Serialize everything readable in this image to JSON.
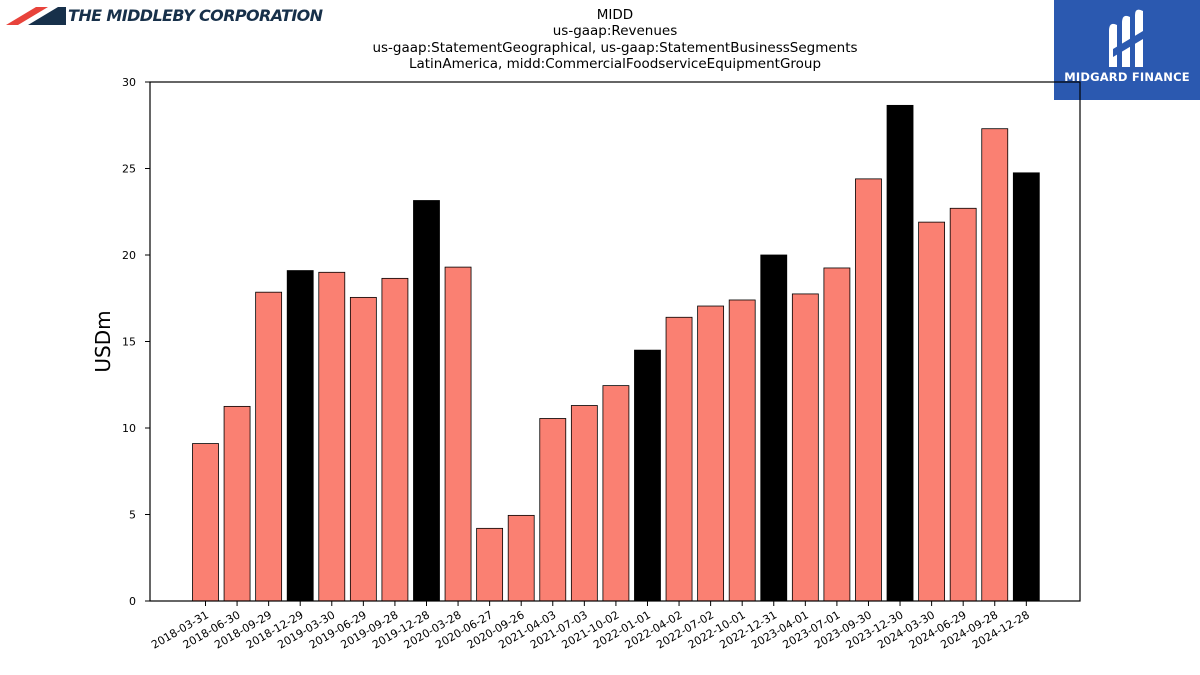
{
  "header": {
    "company_name": "THE MIDDLEBY CORPORATION",
    "company_logo_icon": "middleby-chevron-icon",
    "brand_icon": "midgard-m-icon",
    "brand_name": "MIDGARD FINANCE",
    "brand_color": "#2b59b0"
  },
  "chart_data": {
    "type": "bar",
    "title_lines": [
      "MIDD",
      "us-gaap:Revenues",
      "us-gaap:StatementGeographical, us-gaap:StatementBusinessSegments",
      "LatinAmerica, midd:CommercialFoodserviceEquipmentGroup"
    ],
    "ylabel": "USDm",
    "xlabel": "",
    "ylim": [
      0,
      30
    ],
    "yticks": [
      0,
      5,
      10,
      15,
      20,
      25,
      30
    ],
    "grid": false,
    "categories": [
      "2018-03-31",
      "2018-06-30",
      "2018-09-29",
      "2018-12-29",
      "2019-03-30",
      "2019-06-29",
      "2019-09-28",
      "2019-12-28",
      "2020-03-28",
      "2020-06-27",
      "2020-09-26",
      "2021-04-03",
      "2021-07-03",
      "2021-10-02",
      "2022-01-01",
      "2022-04-02",
      "2022-07-02",
      "2022-10-01",
      "2022-12-31",
      "2023-04-01",
      "2023-07-01",
      "2023-09-30",
      "2023-12-30",
      "2024-03-30",
      "2024-06-29",
      "2024-09-28",
      "2024-12-28"
    ],
    "values": [
      9.1,
      11.25,
      17.85,
      19.1,
      19.0,
      17.55,
      18.65,
      23.15,
      19.3,
      4.2,
      4.95,
      10.55,
      11.3,
      12.45,
      14.5,
      16.4,
      17.05,
      17.4,
      20.0,
      17.75,
      19.25,
      24.4,
      28.65,
      21.9,
      22.7,
      27.3,
      24.75
    ],
    "fiscal_year_end": [
      false,
      false,
      false,
      true,
      false,
      false,
      false,
      true,
      false,
      false,
      false,
      false,
      false,
      false,
      true,
      false,
      false,
      false,
      true,
      false,
      false,
      false,
      true,
      false,
      false,
      false,
      true
    ],
    "colors": {
      "quarter": "#fa8072",
      "year_end": "#000000",
      "edge": "#000000"
    }
  }
}
